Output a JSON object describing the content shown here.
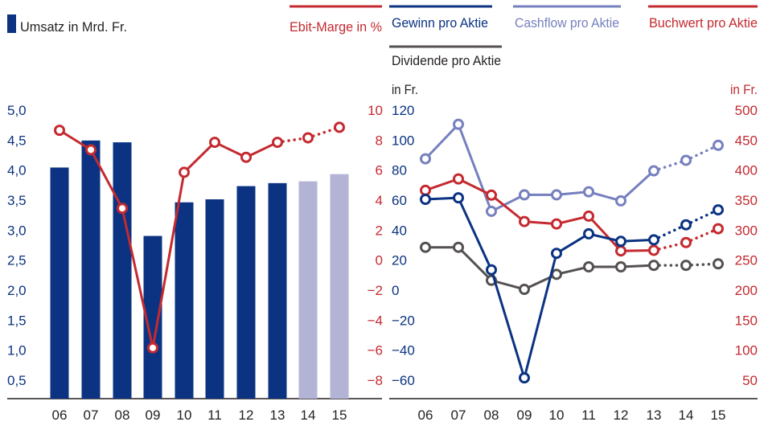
{
  "colors": {
    "navy": "#0b3382",
    "red": "#c42a30",
    "lavender": "#7680be",
    "lavender_light": "#b3b3d6",
    "gray": "#545150",
    "axis": "#231f20"
  },
  "chart_data": [
    {
      "type": "bar",
      "categories": [
        "06",
        "07",
        "08",
        "09",
        "10",
        "11",
        "12",
        "13",
        "14",
        "15"
      ],
      "series": [
        {
          "name": "Umsatz in Mrd. Fr.",
          "values": [
            4.03,
            4.48,
            4.45,
            2.89,
            3.45,
            3.5,
            3.72,
            3.77,
            3.8,
            3.92
          ],
          "highlight_from_index": 8
        },
        {
          "name": "Ebit-Marge in %",
          "type": "line",
          "axis": "right",
          "values": [
            8.6,
            7.3,
            3.4,
            -5.9,
            5.8,
            7.8,
            6.8,
            7.8,
            8.1,
            8.8
          ],
          "dotted_from_index": 7
        }
      ],
      "y_left": {
        "ticks": [
          "5,0",
          "4,5",
          "4,0",
          "3,5",
          "3,0",
          "2,5",
          "2,0",
          "1,5",
          "1,0",
          "0,5"
        ],
        "ylim": [
          0.5,
          5.0
        ]
      },
      "y_right": {
        "ticks": [
          "10",
          "8",
          "6",
          "4",
          "2",
          "0",
          "−2",
          "−4",
          "−6",
          "−8"
        ],
        "ylim": [
          -8,
          10
        ]
      },
      "grid": false,
      "legend": [
        {
          "label": "Umsatz in Mrd. Fr.",
          "position": "top-left"
        },
        {
          "label": "Ebit-Marge in %",
          "position": "top-right"
        }
      ]
    },
    {
      "type": "line",
      "categories": [
        "06",
        "07",
        "08",
        "09",
        "10",
        "11",
        "12",
        "13",
        "14",
        "15"
      ],
      "series": [
        {
          "name": "Gewinn pro Aktie",
          "axis": "left",
          "values": [
            60,
            61,
            13,
            -59,
            24,
            37,
            32,
            33,
            43,
            53
          ],
          "dotted_from_index": 7
        },
        {
          "name": "Cashflow pro Aktie",
          "axis": "left",
          "values": [
            87,
            110,
            52,
            63,
            63,
            65,
            59,
            79,
            86,
            96
          ],
          "dotted_from_index": 7
        },
        {
          "name": "Buchwert pro Aktie",
          "axis": "right",
          "values": [
            365,
            384,
            357,
            313,
            309,
            322,
            264,
            265,
            278,
            301
          ],
          "dotted_from_index": 7
        },
        {
          "name": "Dividende pro Aktie",
          "axis": "left",
          "values": [
            28,
            28,
            6,
            0,
            10,
            15,
            15,
            16,
            16,
            17
          ],
          "dotted_from_index": 7
        }
      ],
      "y_left": {
        "title": "in Fr.",
        "ticks": [
          "120",
          "100",
          "80",
          "60",
          "40",
          "20",
          "0",
          "−20",
          "−40",
          "−60"
        ],
        "ylim": [
          -60,
          120
        ]
      },
      "y_right": {
        "title": "in Fr.",
        "ticks": [
          "500",
          "450",
          "400",
          "350",
          "300",
          "250",
          "200",
          "150",
          "100",
          "50"
        ],
        "ylim": [
          50,
          500
        ]
      },
      "grid": false,
      "legend": [
        "Gewinn pro Aktie",
        "Cashflow pro Aktie",
        "Buchwert pro Aktie",
        "Dividende pro Aktie"
      ]
    }
  ]
}
